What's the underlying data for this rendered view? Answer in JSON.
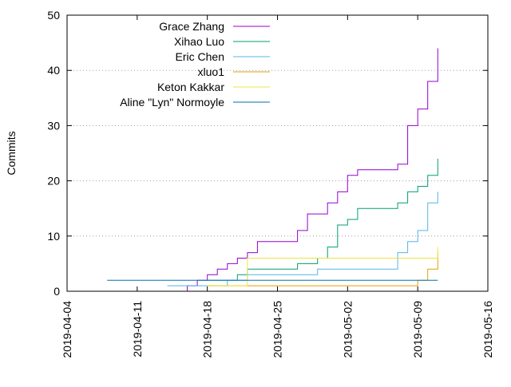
{
  "chart_data": {
    "type": "line",
    "title": "",
    "xlabel": "",
    "ylabel": "Commits",
    "x_type": "date",
    "xlim": [
      "2019-04-04",
      "2019-05-16"
    ],
    "ylim": [
      0,
      50
    ],
    "x_ticks": [
      "2019-04-04",
      "2019-04-11",
      "2019-04-18",
      "2019-04-25",
      "2019-05-02",
      "2019-05-09",
      "2019-05-16"
    ],
    "y_ticks": [
      0,
      10,
      20,
      30,
      40,
      50
    ],
    "grid": "horizontal dotted",
    "legend_position": "top-left",
    "line_shape": "step",
    "series": [
      {
        "name": "Grace Zhang",
        "color": "#9400d3",
        "x": [
          "2019-04-09",
          "2019-04-16",
          "2019-04-17",
          "2019-04-18",
          "2019-04-19",
          "2019-04-20",
          "2019-04-21",
          "2019-04-22",
          "2019-04-23",
          "2019-04-27",
          "2019-04-28",
          "2019-04-30",
          "2019-05-01",
          "2019-05-02",
          "2019-05-03",
          "2019-05-07",
          "2019-05-08",
          "2019-05-09",
          "2019-05-10",
          "2019-05-11"
        ],
        "y": [
          0,
          1,
          2,
          3,
          4,
          5,
          6,
          7,
          9,
          11,
          14,
          16,
          18,
          21,
          22,
          23,
          30,
          33,
          38,
          44
        ]
      },
      {
        "name": "Xihao Luo",
        "color": "#009e73",
        "x": [
          "2019-04-18",
          "2019-04-21",
          "2019-04-22",
          "2019-04-27",
          "2019-04-29",
          "2019-04-30",
          "2019-05-01",
          "2019-05-02",
          "2019-05-03",
          "2019-05-07",
          "2019-05-08",
          "2019-05-09",
          "2019-05-10",
          "2019-05-11"
        ],
        "y": [
          2,
          3,
          4,
          5,
          6,
          8,
          12,
          13,
          15,
          16,
          18,
          19,
          21,
          24
        ]
      },
      {
        "name": "Eric Chen",
        "color": "#56b4e9",
        "x": [
          "2019-04-14",
          "2019-04-20",
          "2019-04-22",
          "2019-04-29",
          "2019-05-07",
          "2019-05-08",
          "2019-05-09",
          "2019-05-10",
          "2019-05-11"
        ],
        "y": [
          1,
          2,
          3,
          4,
          7,
          9,
          11,
          16,
          18
        ]
      },
      {
        "name": "xluo1",
        "color": "#e69f00",
        "x": [
          "2019-04-18",
          "2019-05-09",
          "2019-05-10",
          "2019-05-11"
        ],
        "y": [
          1,
          2,
          4,
          7
        ]
      },
      {
        "name": "Keton Kakkar",
        "color": "#f0e442",
        "x": [
          "2019-04-18",
          "2019-04-22",
          "2019-05-11"
        ],
        "y": [
          1,
          6,
          8
        ]
      },
      {
        "name": "Aline \"Lyn\" Normoyle",
        "color": "#0072b2",
        "x": [
          "2019-04-08",
          "2019-05-11"
        ],
        "y": [
          2,
          2
        ]
      }
    ]
  }
}
